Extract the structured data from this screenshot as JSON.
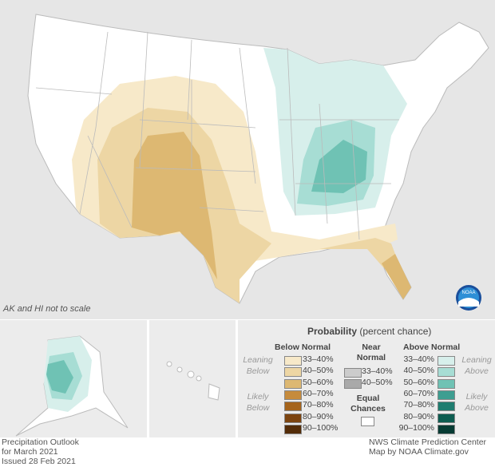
{
  "map_note": "AK and HI not to scale",
  "legend": {
    "title": "Probability",
    "title_sub": "(percent chance)",
    "below": {
      "header": "Below Normal",
      "leaning": "Leaning Below",
      "likely": "Likely Below",
      "items": [
        {
          "label": "33–40%",
          "color": "#f7e9c9"
        },
        {
          "label": "40–50%",
          "color": "#edd6a4"
        },
        {
          "label": "50–60%",
          "color": "#ddb872"
        },
        {
          "label": "60–70%",
          "color": "#c68b3c"
        },
        {
          "label": "70–80%",
          "color": "#a5641c"
        },
        {
          "label": "80–90%",
          "color": "#7c4410"
        },
        {
          "label": "90–100%",
          "color": "#532c08"
        }
      ]
    },
    "near": {
      "header_1": "Near",
      "header_2": "Normal",
      "items": [
        {
          "label": "33–40%",
          "color": "#cccccc"
        },
        {
          "label": "40–50%",
          "color": "#a9a9a9"
        }
      ]
    },
    "equal": {
      "label_1": "Equal",
      "label_2": "Chances",
      "color": "#ffffff"
    },
    "above": {
      "header": "Above Normal",
      "leaning": "Leaning Above",
      "likely": "Likely Above",
      "items": [
        {
          "label": "33–40%",
          "color": "#d7efeb"
        },
        {
          "label": "40–50%",
          "color": "#a7ddd4"
        },
        {
          "label": "50–60%",
          "color": "#6fc2b4"
        },
        {
          "label": "60–70%",
          "color": "#3e9e91"
        },
        {
          "label": "70–80%",
          "color": "#1f7d70"
        },
        {
          "label": "80–90%",
          "color": "#0d5c50"
        },
        {
          "label": "90–100%",
          "color": "#063b33"
        }
      ]
    }
  },
  "footer": {
    "left": [
      "Precipitation Outlook",
      "for March 2021",
      "Issued 28 Feb 2021"
    ],
    "right": [
      "NWS Climate Prediction Center",
      "Map by NOAA Climate.gov"
    ]
  },
  "logo": "NOAA"
}
